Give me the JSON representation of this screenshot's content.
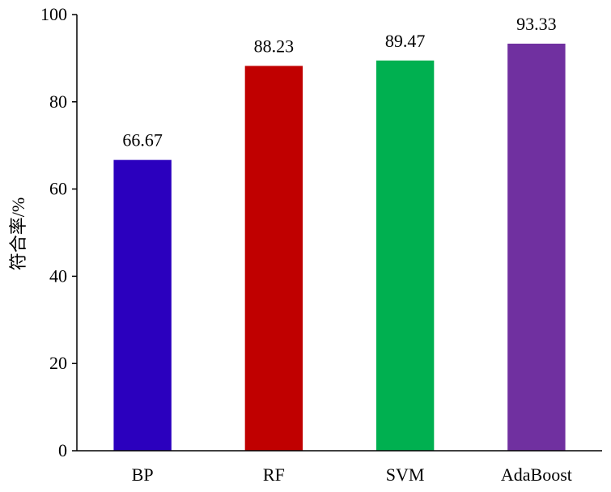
{
  "chart_data": {
    "type": "bar",
    "title": "",
    "xlabel": "",
    "ylabel": "符合率/%",
    "categories": [
      "BP",
      "RF",
      "SVM",
      "AdaBoost"
    ],
    "values": [
      66.67,
      88.23,
      89.47,
      93.33
    ],
    "data_labels": [
      "66.67",
      "88.23",
      "89.47",
      "93.33"
    ],
    "colors": [
      "#2B00BE",
      "#C00000",
      "#00B050",
      "#7030A0"
    ],
    "ylim": [
      0,
      100
    ],
    "yticks": [
      0,
      20,
      40,
      60,
      80,
      100
    ],
    "grid": false,
    "legend": "none"
  }
}
